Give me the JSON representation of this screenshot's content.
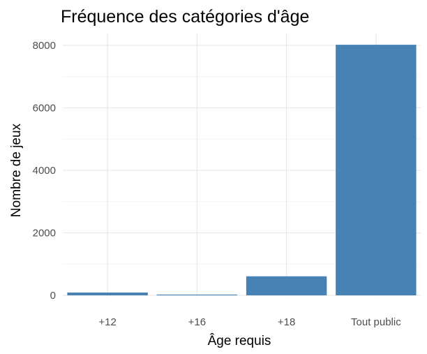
{
  "chart_data": {
    "type": "bar",
    "title": "Fréquence des catégories d'âge",
    "xlabel": "Âge requis",
    "ylabel": "Nombre de jeux",
    "categories": [
      "+12",
      "+16",
      "+18",
      "Tout public"
    ],
    "values": [
      90,
      25,
      610,
      8020
    ],
    "ylim": [
      -50,
      8400
    ],
    "yticks": [
      0,
      2000,
      4000,
      6000,
      8000
    ],
    "grid": true,
    "legend": "none",
    "bar_color": "#4682B4",
    "background": "#ffffff"
  }
}
